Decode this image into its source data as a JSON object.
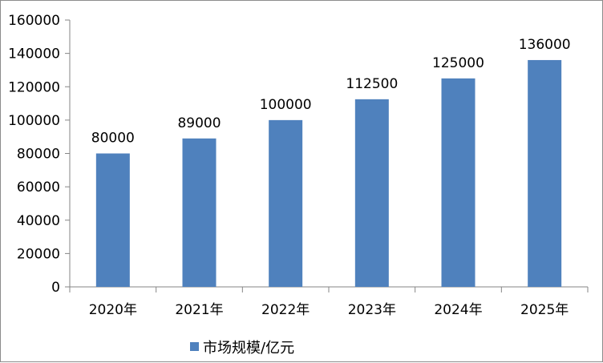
{
  "chart_data": {
    "type": "bar",
    "categories": [
      "2020年",
      "2021年",
      "2022年",
      "2023年",
      "2024年",
      "2025年"
    ],
    "series": [
      {
        "name": "市场规模/亿元",
        "values": [
          80000,
          89000,
          100000,
          112500,
          125000,
          136000
        ],
        "color": "#4f81bd"
      }
    ],
    "ylim": [
      0,
      160000
    ],
    "yticks": [
      0,
      20000,
      40000,
      60000,
      80000,
      100000,
      120000,
      140000,
      160000
    ],
    "grid": false,
    "data_labels": true,
    "legend_position": "bottom"
  }
}
